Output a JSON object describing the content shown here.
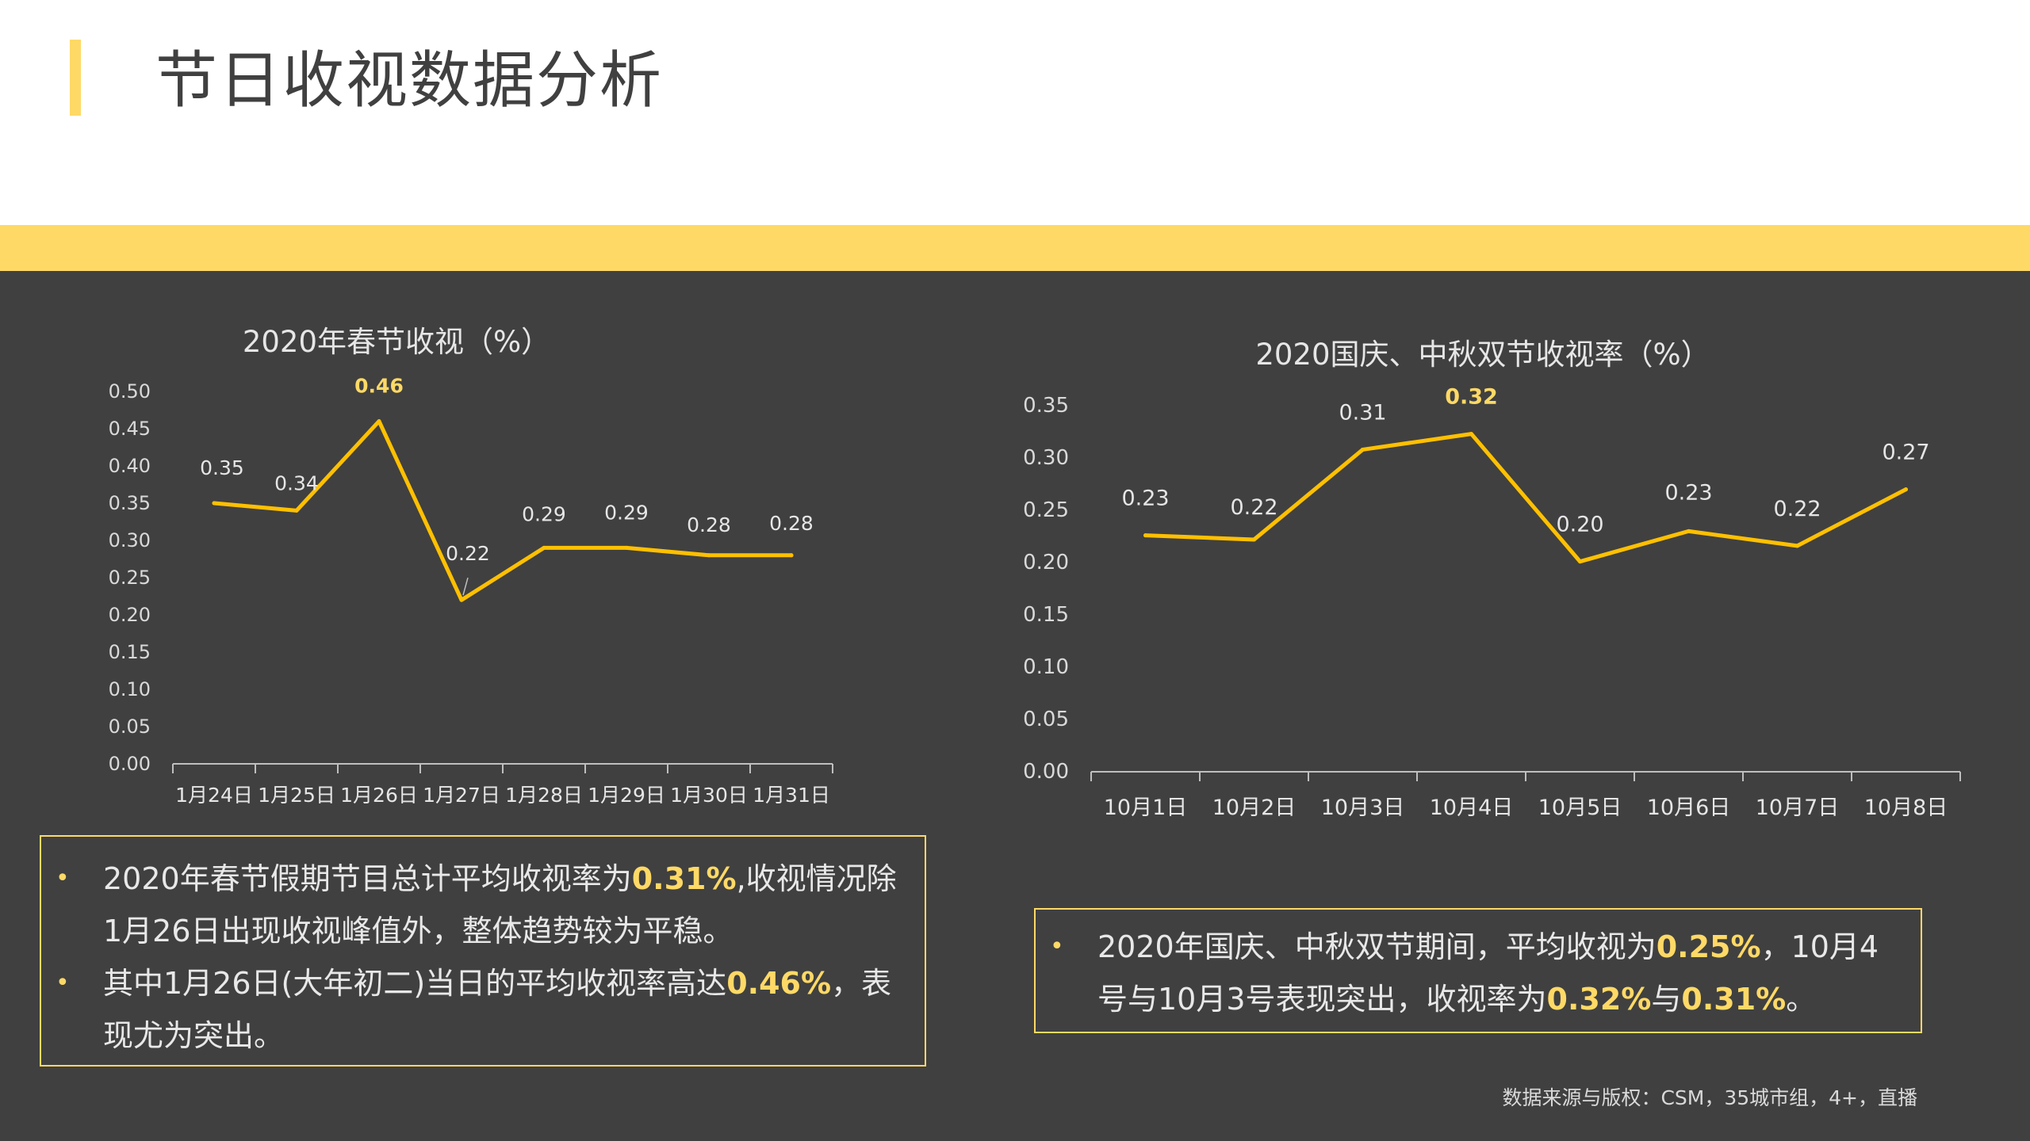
{
  "page": {
    "title": "节日收视数据分析",
    "source": "数据来源与版权：CSM，35城市组，4+，直播",
    "accent_color": "#FFD966",
    "panel_color": "#404040"
  },
  "notes": {
    "left": [
      {
        "segments": [
          {
            "text": "2020年春节假期节目总计平均收视率为",
            "hl": false
          },
          {
            "text": "0.31%",
            "hl": true
          },
          {
            "text": ",收视情况除1月26日出现收视峰值外，整体趋势较为平稳。",
            "hl": false
          }
        ]
      },
      {
        "segments": [
          {
            "text": "其中1月26日(大年初二)当日的平均收视率高达",
            "hl": false
          },
          {
            "text": "0.46%",
            "hl": true
          },
          {
            "text": "，表现尤为突出。",
            "hl": false
          }
        ]
      }
    ],
    "right": [
      {
        "segments": [
          {
            "text": "2020年国庆、中秋双节期间，平均收视为",
            "hl": false
          },
          {
            "text": "0.25%",
            "hl": true
          },
          {
            "text": "，10月4号与10月3号表现突出，收视率为",
            "hl": false
          },
          {
            "text": "0.32%",
            "hl": true
          },
          {
            "text": "与",
            "hl": false
          },
          {
            "text": "0.31%",
            "hl": true
          },
          {
            "text": "。",
            "hl": false
          }
        ]
      }
    ]
  },
  "chart_data": [
    {
      "type": "line",
      "title": "2020年春节收视（%）",
      "categories": [
        "1月24日",
        "1月25日",
        "1月26日",
        "1月27日",
        "1月28日",
        "1月29日",
        "1月30日",
        "1月31日"
      ],
      "values": [
        0.35,
        0.34,
        0.46,
        0.22,
        0.29,
        0.29,
        0.28,
        0.28
      ],
      "data_labels": [
        "0.35",
        "0.34",
        "0.46",
        "0.22",
        "0.29",
        "0.29",
        "0.28",
        "0.28"
      ],
      "highlight_index": 2,
      "ylim": [
        0,
        0.5
      ],
      "y_ticks": [
        "0.00",
        "0.05",
        "0.10",
        "0.15",
        "0.20",
        "0.25",
        "0.30",
        "0.35",
        "0.40",
        "0.45",
        "0.50"
      ],
      "xlabel": "",
      "ylabel": "",
      "grid": false,
      "line_color": "#FFC000"
    },
    {
      "type": "line",
      "title": "2020国庆、中秋双节收视率（%）",
      "categories": [
        "10月1日",
        "10月2日",
        "10月3日",
        "10月4日",
        "10月5日",
        "10月6日",
        "10月7日",
        "10月8日"
      ],
      "values": [
        0.226,
        0.222,
        0.308,
        0.323,
        0.201,
        0.23,
        0.216,
        0.27
      ],
      "data_labels": [
        "0.23",
        "0.22",
        "0.31",
        "0.32",
        "0.20",
        "0.23",
        "0.22",
        "0.27"
      ],
      "highlight_index": 3,
      "ylim": [
        0,
        0.35
      ],
      "y_ticks": [
        "0.00",
        "0.05",
        "0.10",
        "0.15",
        "0.20",
        "0.25",
        "0.30",
        "0.35"
      ],
      "xlabel": "",
      "ylabel": "",
      "grid": false,
      "line_color": "#FFC000"
    }
  ]
}
